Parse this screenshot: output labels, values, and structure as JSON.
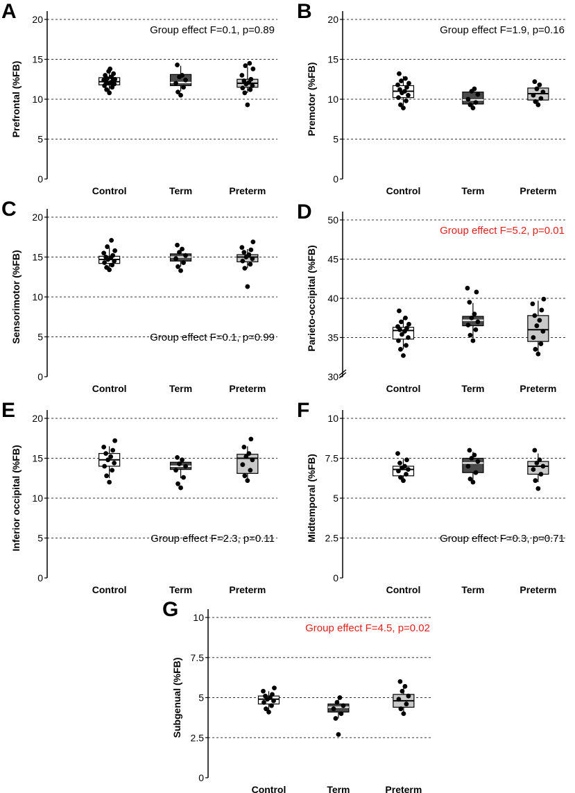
{
  "figure": {
    "colors": {
      "control": "#ffffff",
      "term": "#4a4a4a",
      "preterm": "#c9c9c9",
      "highlight": "#e0201b",
      "text": "#000000",
      "grid": "#333333"
    }
  },
  "chart_data": [
    {
      "panel": "A",
      "type": "box",
      "ylabel": "Prefrontal (%FB)",
      "categories": [
        "Control",
        "Term",
        "Preterm"
      ],
      "ylim": [
        0,
        20
      ],
      "yticks": [
        0,
        5,
        10,
        15,
        20
      ],
      "ytick_labels": [
        "0",
        "5",
        "10",
        "15",
        "20"
      ],
      "gridlines": [
        5,
        10,
        15,
        20
      ],
      "annotation": "Group effect F=0.1, p=0.89",
      "annotation_highlight": false,
      "annotation_position": "top-right",
      "axis_break": false,
      "series": [
        {
          "name": "Control",
          "box": {
            "q1": 11.8,
            "median": 12.2,
            "q3": 12.7,
            "min": 11.0,
            "max": 13.5
          },
          "points": [
            10.8,
            11.2,
            11.5,
            11.7,
            11.9,
            12.0,
            12.1,
            12.2,
            12.3,
            12.4,
            12.5,
            12.6,
            12.8,
            13.0,
            13.2,
            13.5,
            13.8
          ]
        },
        {
          "name": "Term",
          "box": {
            "q1": 11.7,
            "median": 12.1,
            "q3": 13.1,
            "min": 11.0,
            "max": 14.2
          },
          "points": [
            10.5,
            10.9,
            11.5,
            12.0,
            12.4,
            12.8,
            13.0,
            14.3
          ]
        },
        {
          "name": "Preterm",
          "box": {
            "q1": 11.5,
            "median": 12.0,
            "q3": 12.5,
            "min": 10.8,
            "max": 14.0
          },
          "points": [
            9.3,
            10.8,
            11.2,
            11.4,
            11.7,
            11.9,
            12.1,
            12.3,
            12.5,
            13.0,
            13.8,
            14.2,
            14.5
          ]
        }
      ]
    },
    {
      "panel": "B",
      "type": "box",
      "ylabel": "Premotor (%FB)",
      "categories": [
        "Control",
        "Term",
        "Preterm"
      ],
      "ylim": [
        0,
        20
      ],
      "yticks": [
        0,
        5,
        10,
        15,
        20
      ],
      "ytick_labels": [
        "0",
        "5",
        "10",
        "15",
        "20"
      ],
      "gridlines": [
        5,
        10,
        15,
        20
      ],
      "annotation": "Group effect F=1.9, p=0.16",
      "annotation_highlight": false,
      "annotation_position": "top-right",
      "axis_break": false,
      "series": [
        {
          "name": "Control",
          "box": {
            "q1": 10.2,
            "median": 11.0,
            "q3": 11.7,
            "min": 9.2,
            "max": 12.9
          },
          "points": [
            8.9,
            9.3,
            9.8,
            10.2,
            10.5,
            10.8,
            11.0,
            11.2,
            11.5,
            11.8,
            12.0,
            12.3,
            12.6,
            13.2
          ]
        },
        {
          "name": "Term",
          "box": {
            "q1": 9.4,
            "median": 9.9,
            "q3": 10.9,
            "min": 9.0,
            "max": 11.2
          },
          "points": [
            8.9,
            9.3,
            9.6,
            10.0,
            10.6,
            11.0,
            11.3
          ]
        },
        {
          "name": "Preterm",
          "box": {
            "q1": 9.9,
            "median": 10.7,
            "q3": 11.4,
            "min": 9.3,
            "max": 12.0
          },
          "points": [
            9.3,
            9.7,
            10.1,
            10.5,
            10.9,
            11.3,
            11.8,
            12.2
          ]
        }
      ]
    },
    {
      "panel": "C",
      "type": "box",
      "ylabel": "Sensorimotor (%FB)",
      "categories": [
        "Control",
        "Term",
        "Preterm"
      ],
      "ylim": [
        0,
        20
      ],
      "yticks": [
        0,
        5,
        10,
        15,
        20
      ],
      "ytick_labels": [
        "0",
        "5",
        "10",
        "15",
        "20"
      ],
      "gridlines": [
        5,
        10,
        15,
        20
      ],
      "annotation": "Group effect F=0.1, p=0.99",
      "annotation_highlight": false,
      "annotation_position": "bottom-right",
      "axis_break": false,
      "series": [
        {
          "name": "Control",
          "box": {
            "q1": 14.2,
            "median": 14.7,
            "q3": 15.1,
            "min": 13.5,
            "max": 16.2
          },
          "points": [
            13.4,
            13.7,
            14.0,
            14.3,
            14.5,
            14.7,
            14.9,
            15.0,
            15.2,
            15.5,
            15.8,
            16.3,
            17.1
          ]
        },
        {
          "name": "Term",
          "box": {
            "q1": 14.5,
            "median": 15.0,
            "q3": 15.4,
            "min": 13.8,
            "max": 16.0
          },
          "points": [
            13.3,
            13.8,
            14.3,
            14.8,
            15.2,
            15.6,
            16.0,
            16.5
          ]
        },
        {
          "name": "Preterm",
          "box": {
            "q1": 14.4,
            "median": 15.0,
            "q3": 15.3,
            "min": 13.6,
            "max": 16.0
          },
          "points": [
            11.3,
            13.6,
            14.1,
            14.5,
            14.8,
            15.0,
            15.3,
            15.6,
            15.9,
            16.2,
            16.9
          ]
        }
      ]
    },
    {
      "panel": "D",
      "type": "box",
      "ylabel": "Parieto-occipital (%FB)",
      "categories": [
        "Control",
        "Term",
        "Preterm"
      ],
      "ylim": [
        30,
        50
      ],
      "yticks": [
        30,
        35,
        40,
        45,
        50
      ],
      "ytick_labels": [
        "30",
        "35",
        "40",
        "45",
        "50"
      ],
      "gridlines": [
        35,
        40,
        45,
        50
      ],
      "annotation": "Group effect F=5.2, p=0.01",
      "annotation_highlight": true,
      "annotation_position": "top-right",
      "axis_break": true,
      "series": [
        {
          "name": "Control",
          "box": {
            "q1": 34.8,
            "median": 35.9,
            "q3": 36.3,
            "min": 33.5,
            "max": 37.5
          },
          "points": [
            32.7,
            33.5,
            34.0,
            34.6,
            35.0,
            35.4,
            35.8,
            36.0,
            36.2,
            36.4,
            36.7,
            37.0,
            37.5,
            38.4
          ]
        },
        {
          "name": "Term",
          "box": {
            "q1": 36.5,
            "median": 37.2,
            "q3": 37.7,
            "min": 35.0,
            "max": 39.4
          },
          "points": [
            34.6,
            35.3,
            36.0,
            36.6,
            37.0,
            37.5,
            38.0,
            39.5,
            40.8,
            41.3
          ]
        },
        {
          "name": "Preterm",
          "box": {
            "q1": 34.5,
            "median": 36.0,
            "q3": 37.8,
            "min": 33.0,
            "max": 39.7
          },
          "points": [
            32.9,
            33.5,
            34.2,
            35.0,
            35.8,
            36.5,
            37.2,
            37.8,
            38.5,
            39.3,
            39.9
          ]
        }
      ]
    },
    {
      "panel": "E",
      "type": "box",
      "ylabel": "Inferior occipital (%FB)",
      "categories": [
        "Control",
        "Term",
        "Preterm"
      ],
      "ylim": [
        0,
        20
      ],
      "yticks": [
        0,
        5,
        10,
        15,
        20
      ],
      "ytick_labels": [
        "0",
        "5",
        "10",
        "15",
        "20"
      ],
      "gridlines": [
        5,
        10,
        15,
        20
      ],
      "annotation": "Group effect F=2.3, p=0.11",
      "annotation_highlight": false,
      "annotation_position": "bottom-right",
      "axis_break": false,
      "series": [
        {
          "name": "Control",
          "box": {
            "q1": 14.0,
            "median": 14.8,
            "q3": 15.6,
            "min": 12.5,
            "max": 16.5
          },
          "points": [
            12.0,
            12.8,
            13.5,
            14.0,
            14.4,
            14.8,
            15.2,
            15.6,
            16.0,
            16.4,
            17.2
          ]
        },
        {
          "name": "Term",
          "box": {
            "q1": 13.6,
            "median": 14.0,
            "q3": 14.5,
            "min": 12.5,
            "max": 15.0
          },
          "points": [
            11.3,
            11.8,
            12.6,
            13.5,
            14.0,
            14.3,
            14.8,
            15.1
          ]
        },
        {
          "name": "Preterm",
          "box": {
            "q1": 13.1,
            "median": 15.0,
            "q3": 15.5,
            "min": 12.3,
            "max": 16.5
          },
          "points": [
            12.2,
            12.8,
            13.5,
            14.2,
            14.8,
            15.2,
            15.6,
            16.4,
            17.4
          ]
        }
      ]
    },
    {
      "panel": "F",
      "type": "box",
      "ylabel": "Midtemporal (%FB)",
      "categories": [
        "Control",
        "Term",
        "Preterm"
      ],
      "ylim": [
        0,
        10
      ],
      "yticks": [
        0,
        2.5,
        5,
        7.5,
        10
      ],
      "ytick_labels": [
        "0",
        "2.5",
        "5",
        "7.5",
        "10"
      ],
      "gridlines": [
        2.5,
        5,
        7.5,
        10
      ],
      "annotation": "Group effect F=0.3, p=0.71",
      "annotation_highlight": false,
      "annotation_position": "bottom-right",
      "axis_break": false,
      "series": [
        {
          "name": "Control",
          "box": {
            "q1": 6.4,
            "median": 6.8,
            "q3": 7.0,
            "min": 6.0,
            "max": 7.5
          },
          "points": [
            6.1,
            6.3,
            6.5,
            6.7,
            6.8,
            6.9,
            7.0,
            7.2,
            7.4,
            7.8
          ]
        },
        {
          "name": "Term",
          "box": {
            "q1": 6.6,
            "median": 7.2,
            "q3": 7.5,
            "min": 6.0,
            "max": 7.9
          },
          "points": [
            6.0,
            6.2,
            6.6,
            7.0,
            7.3,
            7.5,
            7.7,
            8.0
          ]
        },
        {
          "name": "Preterm",
          "box": {
            "q1": 6.5,
            "median": 7.0,
            "q3": 7.3,
            "min": 6.0,
            "max": 7.8
          },
          "points": [
            5.6,
            6.1,
            6.5,
            6.8,
            7.0,
            7.2,
            7.4,
            8.0
          ]
        }
      ]
    },
    {
      "panel": "G",
      "type": "box",
      "ylabel": "Subgenual (%FB)",
      "categories": [
        "Control",
        "Term",
        "Preterm"
      ],
      "ylim": [
        0,
        10
      ],
      "yticks": [
        0,
        2.5,
        5,
        7.5,
        10
      ],
      "ytick_labels": [
        "0",
        "2.5",
        "5",
        "7.5",
        "10"
      ],
      "gridlines": [
        2.5,
        5,
        7.5,
        10
      ],
      "annotation": "Group effect F=4.5, p=0.02",
      "annotation_highlight": true,
      "annotation_position": "top-right",
      "axis_break": false,
      "series": [
        {
          "name": "Control",
          "box": {
            "q1": 4.6,
            "median": 4.9,
            "q3": 5.1,
            "min": 4.2,
            "max": 5.4
          },
          "points": [
            4.1,
            4.3,
            4.5,
            4.7,
            4.8,
            4.9,
            5.0,
            5.1,
            5.2,
            5.4,
            5.6
          ]
        },
        {
          "name": "Term",
          "box": {
            "q1": 4.1,
            "median": 4.4,
            "q3": 4.6,
            "min": 3.7,
            "max": 4.9
          },
          "points": [
            2.7,
            3.7,
            4.0,
            4.3,
            4.5,
            4.7,
            5.0
          ]
        },
        {
          "name": "Preterm",
          "box": {
            "q1": 4.4,
            "median": 4.8,
            "q3": 5.2,
            "min": 4.1,
            "max": 5.6
          },
          "points": [
            4.0,
            4.3,
            4.6,
            4.9,
            5.1,
            5.4,
            5.7,
            6.0
          ]
        }
      ]
    }
  ]
}
